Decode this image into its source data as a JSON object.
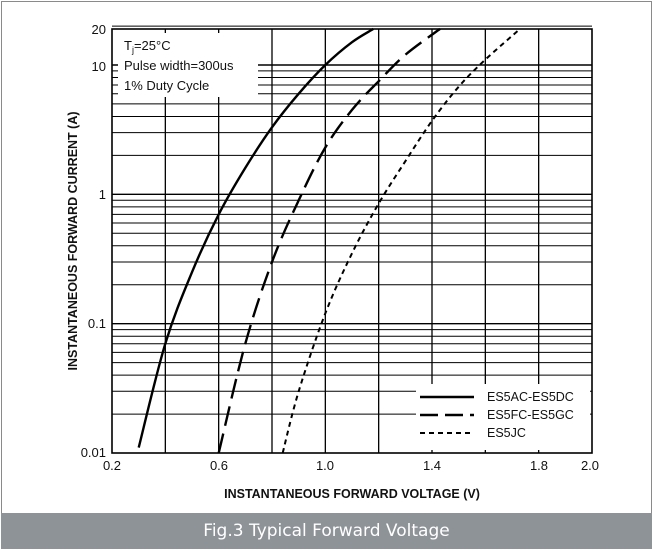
{
  "chart_data": {
    "type": "line",
    "title": "",
    "xlabel": "INSTANTANEOUS FORWARD VOLTAGE (V)",
    "ylabel": "INSTANTANEOUS FORWARD CURRENT (A)",
    "xlim": [
      0.2,
      2.0
    ],
    "ylim": [
      0.01,
      20
    ],
    "yscale": "log",
    "grid": true,
    "x_tick_labels": [
      "0.2",
      "0.6",
      "1.0",
      "1.4",
      "1.8",
      "2.0"
    ],
    "y_tick_labels": [
      "0.01",
      "0.1",
      "1",
      "10",
      "20"
    ],
    "annotation": {
      "line1_prefix": "T",
      "line1_sub": "j",
      "line1_suffix": "=25°C",
      "line2": "Pulse width=300us",
      "line3": "1% Duty Cycle"
    },
    "legend_position": "bottom-right",
    "series": [
      {
        "name": "ES5AC-ES5DC",
        "dash": "solid",
        "x": [
          0.3,
          0.4,
          0.5,
          0.6,
          0.7,
          0.8,
          0.9,
          1.0,
          1.1,
          1.18
        ],
        "y": [
          0.011,
          0.07,
          0.25,
          0.7,
          1.6,
          3.3,
          6.0,
          10.0,
          15.0,
          19.0
        ]
      },
      {
        "name": "ES5FC-ES5GC",
        "dash": "long-dash",
        "x": [
          0.6,
          0.7,
          0.8,
          0.9,
          1.0,
          1.1,
          1.2,
          1.3,
          1.43
        ],
        "y": [
          0.01,
          0.07,
          0.3,
          0.9,
          2.3,
          4.5,
          7.5,
          12.0,
          19.0
        ]
      },
      {
        "name": "ES5JC",
        "dash": "short-dash",
        "x": [
          0.84,
          0.9,
          1.0,
          1.1,
          1.2,
          1.3,
          1.4,
          1.5,
          1.6,
          1.73
        ],
        "y": [
          0.01,
          0.03,
          0.12,
          0.35,
          0.85,
          1.8,
          3.7,
          6.8,
          11.0,
          19.0
        ]
      }
    ]
  },
  "caption": "Fig.3 Typical Forward Voltage"
}
